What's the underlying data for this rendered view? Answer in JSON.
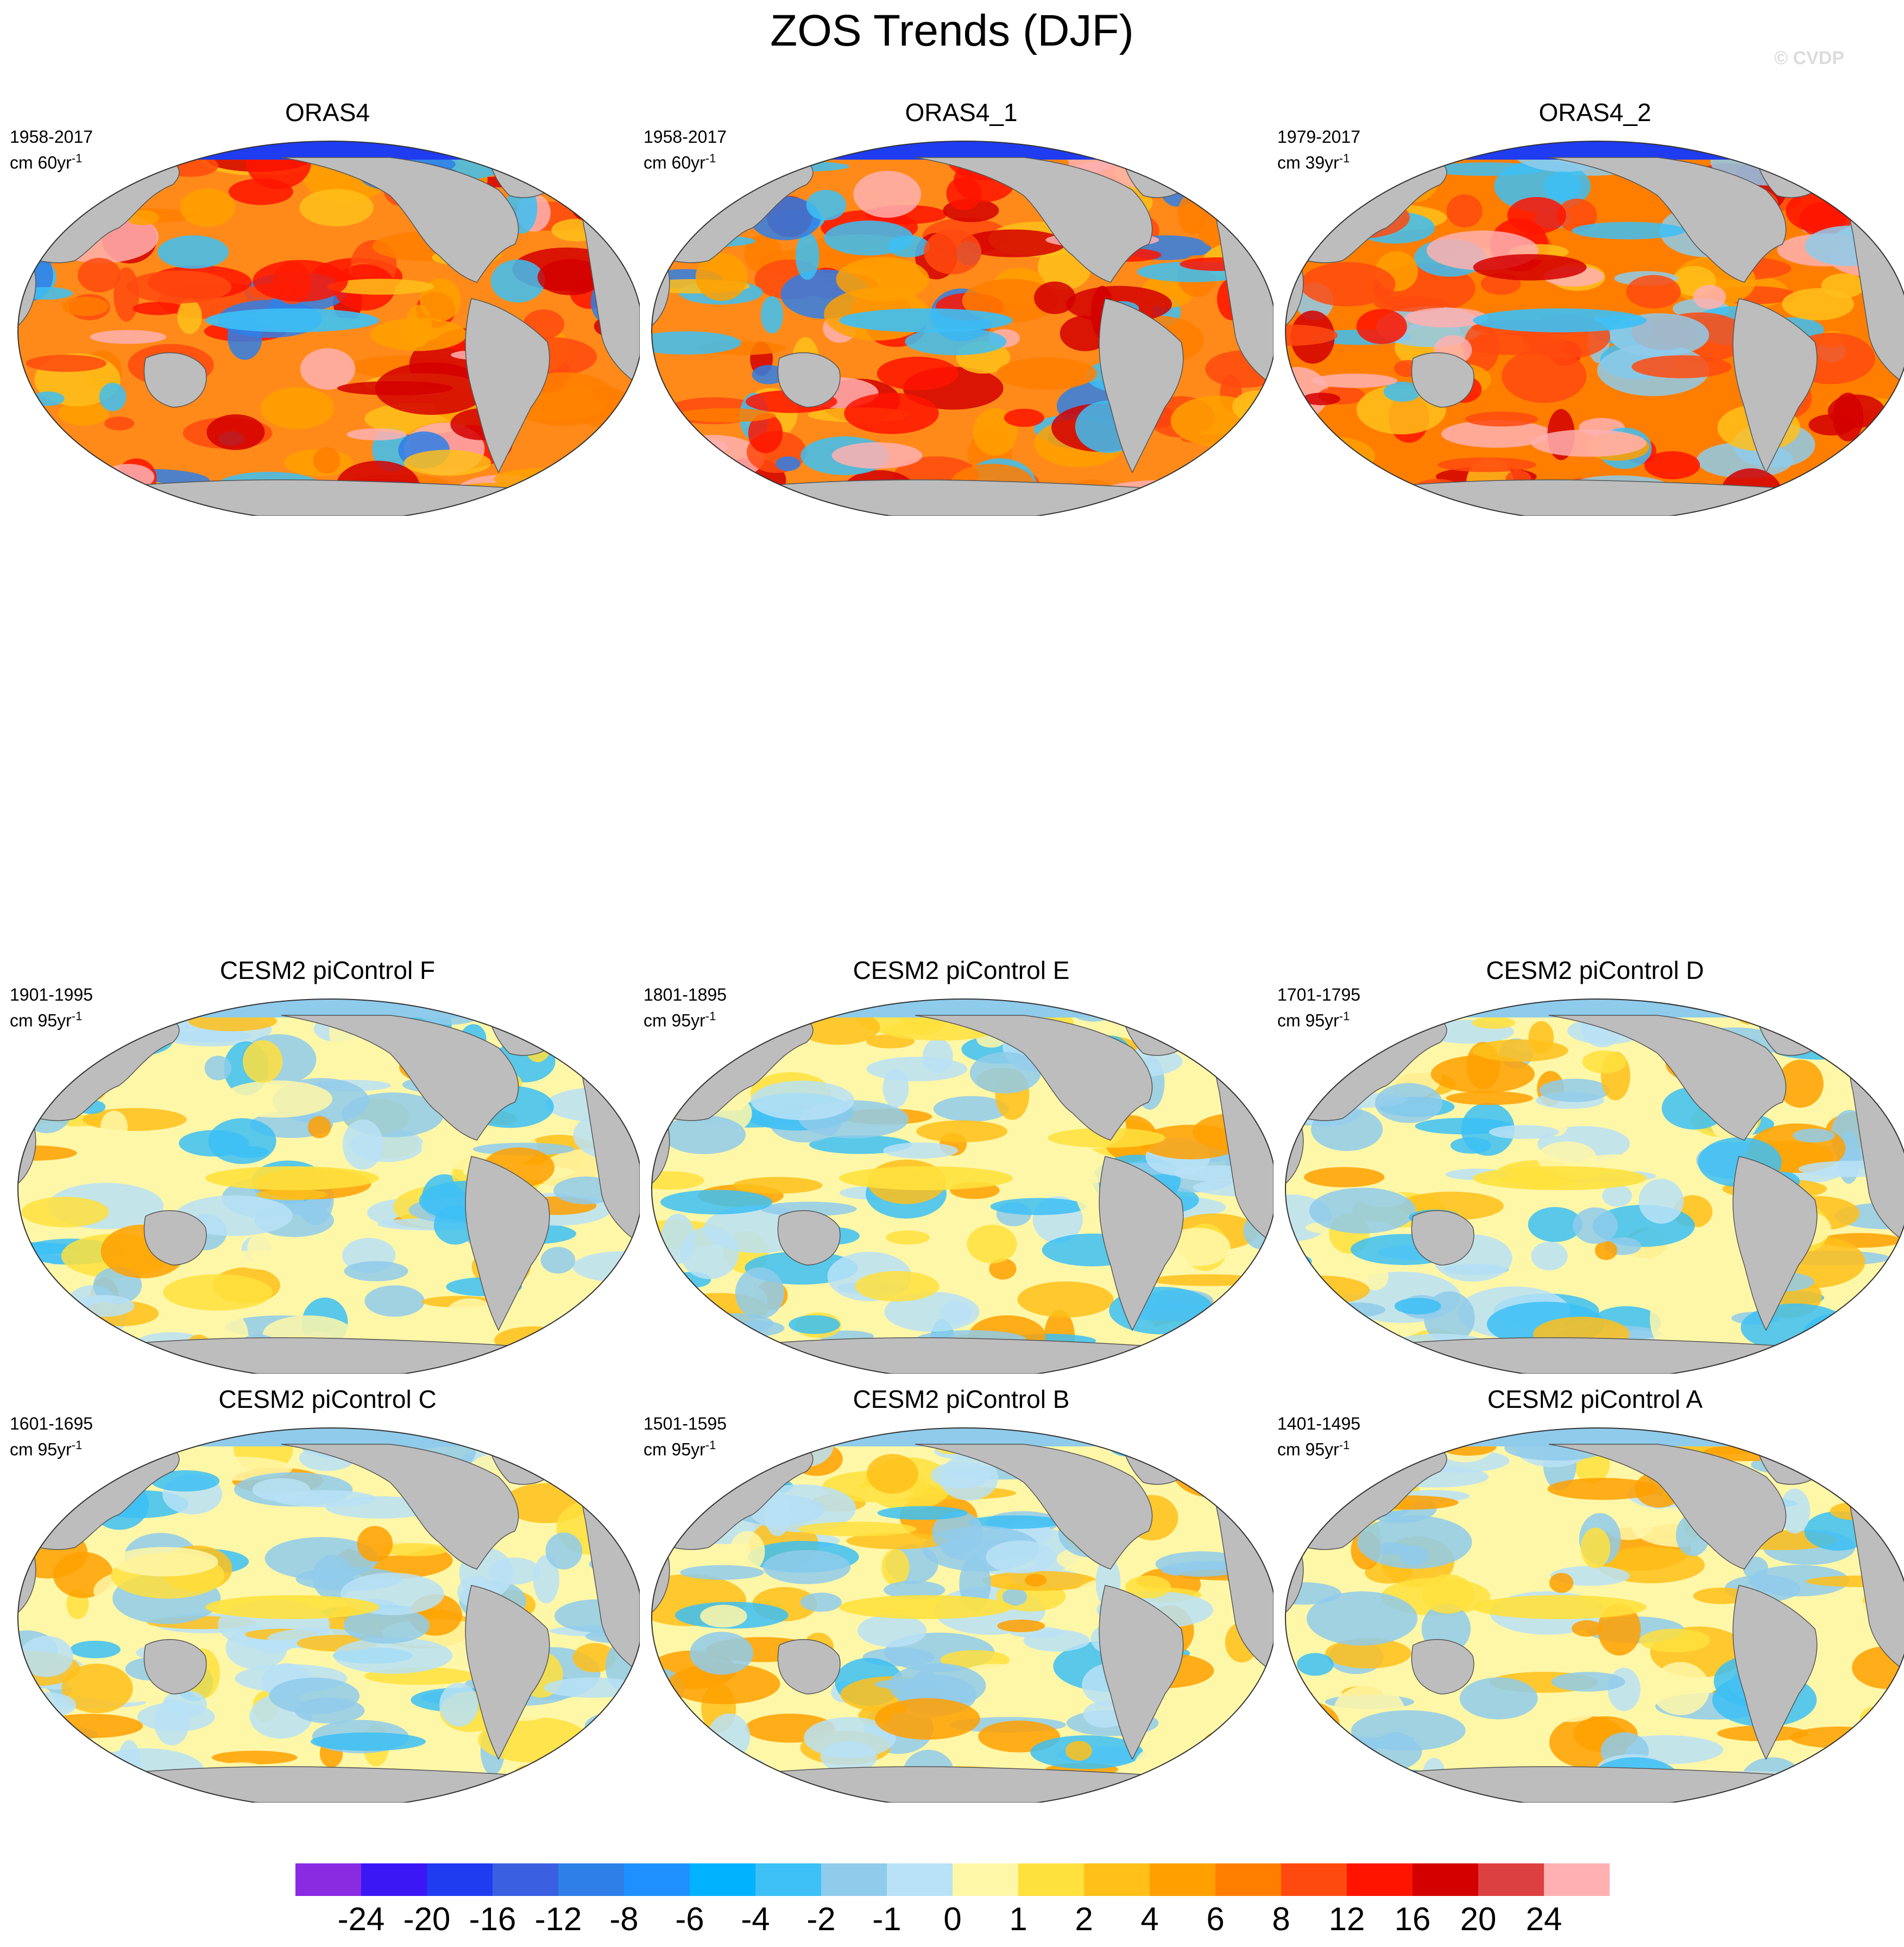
{
  "title": "ZOS Trends (DJF)",
  "watermark": "© CVDP",
  "panels": [
    {
      "title": "ORAS4",
      "period": "1958-2017",
      "unit_prefix": "cm 60yr",
      "unit_exp": "-1",
      "scheme": "warm"
    },
    {
      "title": "ORAS4_1",
      "period": "1958-2017",
      "unit_prefix": "cm 60yr",
      "unit_exp": "-1",
      "scheme": "warm"
    },
    {
      "title": "ORAS4_2",
      "period": "1979-2017",
      "unit_prefix": "cm 39yr",
      "unit_exp": "-1",
      "scheme": "warm2"
    },
    {
      "title": "CESM2 piControl F",
      "period": "1901-1995",
      "unit_prefix": "cm 95yr",
      "unit_exp": "-1",
      "scheme": "mild"
    },
    {
      "title": "CESM2 piControl E",
      "period": "1801-1895",
      "unit_prefix": "cm 95yr",
      "unit_exp": "-1",
      "scheme": "mild"
    },
    {
      "title": "CESM2 piControl D",
      "period": "1701-1795",
      "unit_prefix": "cm 95yr",
      "unit_exp": "-1",
      "scheme": "mild"
    },
    {
      "title": "CESM2 piControl C",
      "period": "1601-1695",
      "unit_prefix": "cm 95yr",
      "unit_exp": "-1",
      "scheme": "mild"
    },
    {
      "title": "CESM2 piControl B",
      "period": "1501-1595",
      "unit_prefix": "cm 95yr",
      "unit_exp": "-1",
      "scheme": "mild"
    },
    {
      "title": "CESM2 piControl A",
      "period": "1401-1495",
      "unit_prefix": "cm 95yr",
      "unit_exp": "-1",
      "scheme": "mild"
    }
  ],
  "colorbar": {
    "labels": [
      "-24",
      "-20",
      "-16",
      "-12",
      "-8",
      "-6",
      "-4",
      "-2",
      "-1",
      "0",
      "1",
      "2",
      "4",
      "6",
      "8",
      "12",
      "16",
      "20",
      "24"
    ],
    "colors": [
      "#8a2be2",
      "#3b17f5",
      "#1f3cf0",
      "#3a5fe0",
      "#2f7fe8",
      "#1e90ff",
      "#00b2ff",
      "#3cc0f5",
      "#8fcbeb",
      "#b8e2f6",
      "#fff7a8",
      "#ffe13d",
      "#ffc01a",
      "#ffa000",
      "#ff7e00",
      "#ff4a0f",
      "#ff1400",
      "#d40000",
      "#dd4040",
      "#ffb0b0"
    ]
  }
}
